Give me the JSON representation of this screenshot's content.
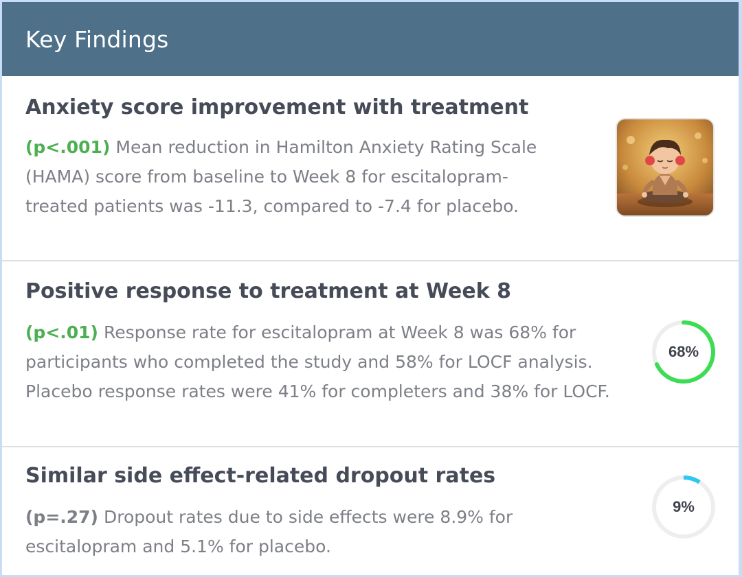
{
  "header": {
    "title": "Key Findings"
  },
  "findings": [
    {
      "title": "Anxiety score improvement with treatment",
      "p_value": "(p<.001)",
      "p_value_color": "#4caf50",
      "text": "Mean reduction in Hamilton Anxiety Rating Scale (HAMA) score from baseline to Week 8 for escitalopram-treated patients was -11.3, compared to -7.4 for placebo.",
      "icon": "meditating-child-illustration"
    },
    {
      "title": "Positive response to treatment at Week 8",
      "p_value": "(p<.01)",
      "p_value_color": "#4caf50",
      "text": "Response rate for escitalopram at Week 8 was 68% for participants who completed the study and 58% for LOCF analysis. Placebo response rates were 41% for completers and 38% for LOCF.",
      "ring": {
        "label": "68%",
        "value": 68,
        "color": "#3ddc55"
      }
    },
    {
      "title": "Similar side effect-related dropout rates",
      "p_value": "(p=.27)",
      "p_value_color": "#7c7f86",
      "text": "Dropout rates due to side effects were 8.9% for escitalopram and 5.1% for placebo.",
      "ring": {
        "label": "9%",
        "value": 9,
        "color": "#2fc7ef"
      }
    }
  ],
  "colors": {
    "header_bg": "#4e7089",
    "ring_track": "#eeeeee"
  }
}
